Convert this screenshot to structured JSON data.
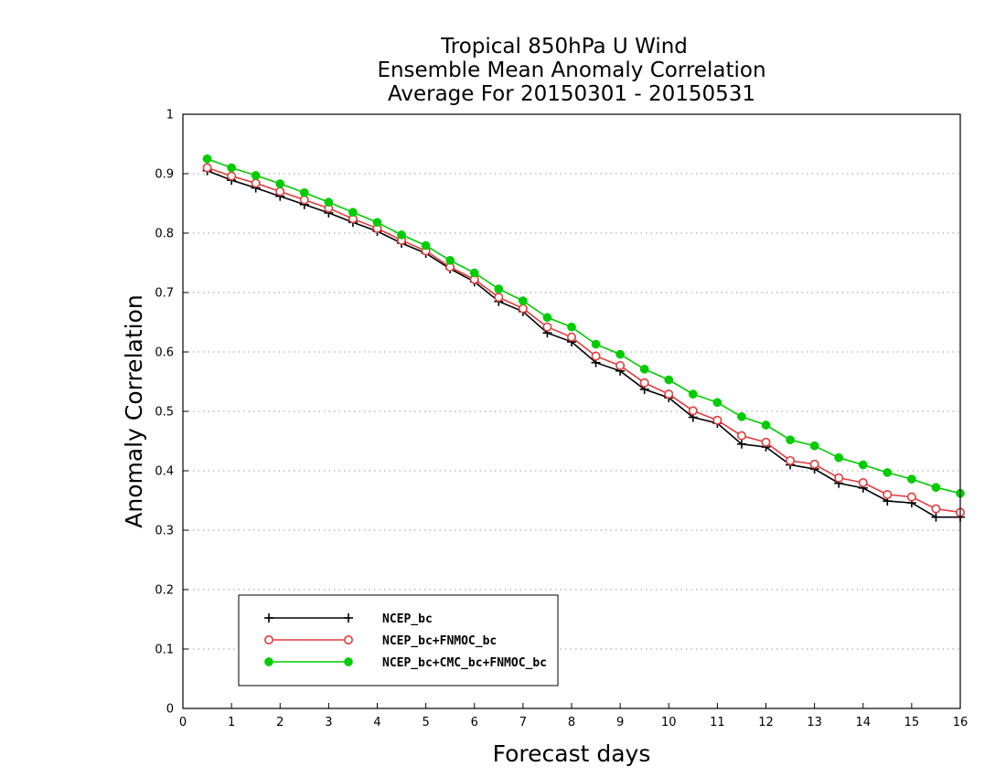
{
  "chart_data": {
    "type": "line",
    "title": [
      "Tropical 850hPa U Wind",
      "Ensemble Mean Anomaly Correlation",
      "Average For 20150301 - 20150531"
    ],
    "xlabel": "Forecast days",
    "ylabel": "Anomaly Correlation",
    "xlim": [
      0,
      16
    ],
    "ylim": [
      0,
      1
    ],
    "xticks": [
      "0",
      "1",
      "2",
      "3",
      "4",
      "5",
      "6",
      "7",
      "8",
      "9",
      "10",
      "11",
      "12",
      "13",
      "14",
      "15",
      "16"
    ],
    "yticks": [
      "0",
      "0.1",
      "0.2",
      "0.3",
      "0.4",
      "0.5",
      "0.6",
      "0.7",
      "0.8",
      "0.9",
      "1"
    ],
    "grid": "horizontal dotted",
    "legend_position": "bottom-left",
    "x": [
      0.5,
      1,
      1.5,
      2,
      2.5,
      3,
      3.5,
      4,
      4.5,
      5,
      5.5,
      6,
      6.5,
      7,
      7.5,
      8,
      8.5,
      9,
      9.5,
      10,
      10.5,
      11,
      11.5,
      12,
      12.5,
      13,
      13.5,
      14,
      14.5,
      15,
      15.5,
      16
    ],
    "series": [
      {
        "name": "NCEP_bc",
        "color": "#000000",
        "marker": "plus",
        "values": [
          0.905,
          0.889,
          0.876,
          0.862,
          0.848,
          0.834,
          0.818,
          0.803,
          0.783,
          0.766,
          0.74,
          0.718,
          0.685,
          0.668,
          0.632,
          0.617,
          0.582,
          0.568,
          0.537,
          0.523,
          0.49,
          0.48,
          0.445,
          0.44,
          0.41,
          0.403,
          0.379,
          0.371,
          0.349,
          0.346,
          0.322,
          0.322
        ]
      },
      {
        "name": "NCEP_bc+FNMOC_bc",
        "color": "#e03c3c",
        "marker": "open-circle",
        "values": [
          0.91,
          0.896,
          0.884,
          0.87,
          0.856,
          0.842,
          0.824,
          0.808,
          0.788,
          0.77,
          0.743,
          0.722,
          0.692,
          0.673,
          0.642,
          0.625,
          0.593,
          0.577,
          0.548,
          0.529,
          0.501,
          0.485,
          0.459,
          0.448,
          0.417,
          0.411,
          0.388,
          0.38,
          0.36,
          0.356,
          0.336,
          0.33
        ]
      },
      {
        "name": "NCEP_bc+CMC_bc+FNMOC_bc",
        "color": "#00cc00",
        "marker": "filled-circle",
        "values": [
          0.925,
          0.91,
          0.897,
          0.883,
          0.868,
          0.852,
          0.835,
          0.818,
          0.797,
          0.779,
          0.754,
          0.733,
          0.706,
          0.686,
          0.658,
          0.642,
          0.613,
          0.596,
          0.571,
          0.553,
          0.529,
          0.515,
          0.491,
          0.477,
          0.452,
          0.442,
          0.422,
          0.41,
          0.397,
          0.386,
          0.372,
          0.362
        ]
      }
    ]
  }
}
